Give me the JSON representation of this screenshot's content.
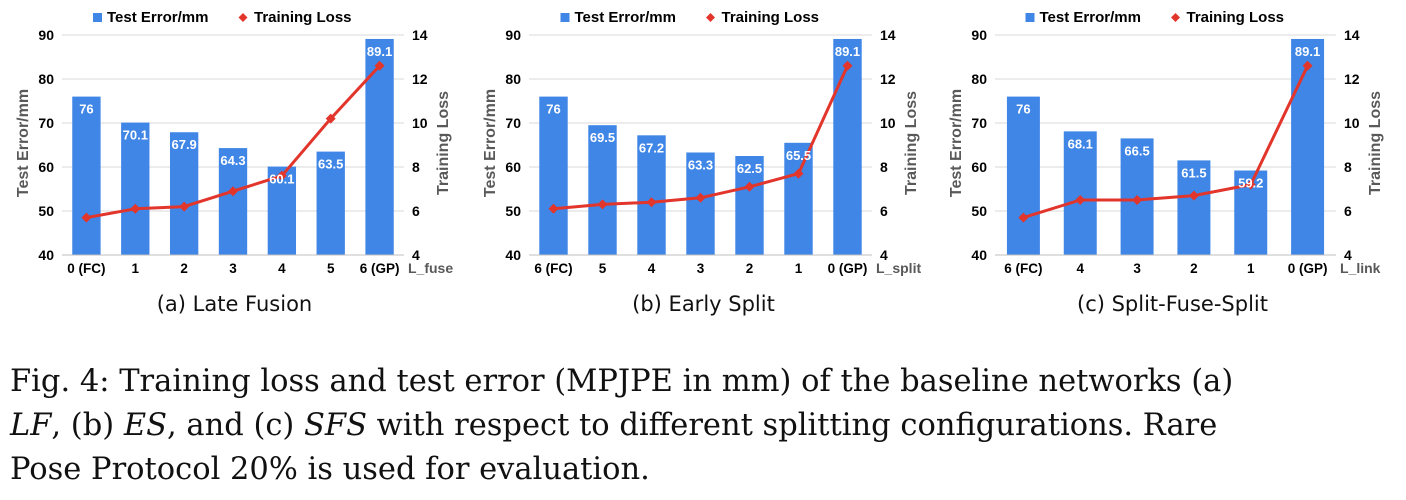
{
  "legend": {
    "bar_label": "Test Error/mm",
    "line_label": "Training Loss"
  },
  "colors": {
    "bar": "#3f86e6",
    "line": "#e2352b",
    "axis_text": "#595959",
    "grid": "#d9d9d9"
  },
  "chart_data": [
    {
      "type": "bar",
      "subtitle": "(a) Late Fusion",
      "categories": [
        "0 (FC)",
        "1",
        "2",
        "3",
        "4",
        "5",
        "6 (GP)"
      ],
      "xlabel": "L_fuse",
      "ylabel": "Test Error/mm",
      "y2label": "Training Loss",
      "ylim": [
        40,
        90
      ],
      "y2lim": [
        4,
        14
      ],
      "yticks": [
        40,
        50,
        60,
        70,
        80,
        90
      ],
      "y2ticks": [
        4,
        6,
        8,
        10,
        12,
        14
      ],
      "series": [
        {
          "name": "Test Error/mm",
          "type": "bar",
          "axis": "left",
          "values": [
            76,
            70.1,
            67.9,
            64.3,
            60.1,
            63.5,
            89.1
          ],
          "labels": [
            "76",
            "70.1",
            "67.9",
            "64.3",
            "60.1",
            "63.5",
            "89.1"
          ]
        },
        {
          "name": "Training Loss",
          "type": "line",
          "axis": "right",
          "values": [
            5.7,
            6.1,
            6.2,
            6.9,
            7.6,
            10.2,
            12.6
          ]
        }
      ]
    },
    {
      "type": "bar",
      "subtitle": "(b) Early Split",
      "categories": [
        "6 (FC)",
        "5",
        "4",
        "3",
        "2",
        "1",
        "0 (GP)"
      ],
      "xlabel": "L_split",
      "ylabel": "Test Error/mm",
      "y2label": "Training Loss",
      "ylim": [
        40,
        90
      ],
      "y2lim": [
        4,
        14
      ],
      "yticks": [
        40,
        50,
        60,
        70,
        80,
        90
      ],
      "y2ticks": [
        4,
        6,
        8,
        10,
        12,
        14
      ],
      "series": [
        {
          "name": "Test Error/mm",
          "type": "bar",
          "axis": "left",
          "values": [
            76,
            69.5,
            67.2,
            63.3,
            62.5,
            65.5,
            89.1
          ],
          "labels": [
            "76",
            "69.5",
            "67.2",
            "63.3",
            "62.5",
            "65.5",
            "89.1"
          ]
        },
        {
          "name": "Training Loss",
          "type": "line",
          "axis": "right",
          "values": [
            6.1,
            6.3,
            6.4,
            6.6,
            7.1,
            7.7,
            12.6
          ]
        }
      ]
    },
    {
      "type": "bar",
      "subtitle": "(c) Split-Fuse-Split",
      "categories": [
        "6 (FC)",
        "4",
        "3",
        "2",
        "1",
        "0 (GP)"
      ],
      "xlabel": "L_link",
      "ylabel": "Test Error/mm",
      "y2label": "Training Loss",
      "ylim": [
        40,
        90
      ],
      "y2lim": [
        4,
        14
      ],
      "yticks": [
        40,
        50,
        60,
        70,
        80,
        90
      ],
      "y2ticks": [
        4,
        6,
        8,
        10,
        12,
        14
      ],
      "series": [
        {
          "name": "Test Error/mm",
          "type": "bar",
          "axis": "left",
          "values": [
            76,
            68.1,
            66.5,
            61.5,
            59.2,
            89.1
          ],
          "labels": [
            "76",
            "68.1",
            "66.5",
            "61.5",
            "59.2",
            "89.1"
          ]
        },
        {
          "name": "Training Loss",
          "type": "line",
          "axis": "right",
          "values": [
            5.7,
            6.5,
            6.5,
            6.7,
            7.2,
            12.6
          ]
        }
      ]
    }
  ],
  "caption": {
    "line1": "Fig. 4: Training loss and test error (MPJPE in mm) of the baseline networks (a)",
    "line2_a": "LF",
    "line2_b": ", (b) ",
    "line2_c": "ES",
    "line2_d": ", and (c) ",
    "line2_e": "SFS",
    "line2_f": " with respect to different splitting configurations. Rare",
    "line3": "Pose Protocol 20% is used for evaluation."
  }
}
